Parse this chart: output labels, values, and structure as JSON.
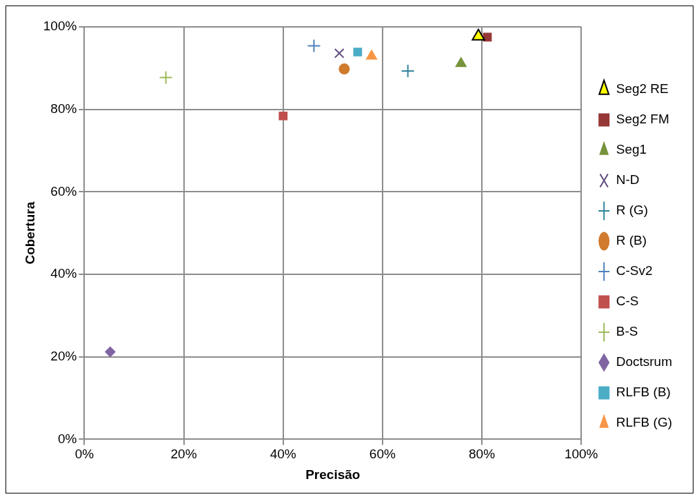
{
  "chart_data": {
    "type": "scatter",
    "xlabel": "Precisão",
    "ylabel": "Cobertura",
    "xlim": [
      0,
      100
    ],
    "ylim": [
      0,
      100
    ],
    "xticks": [
      {
        "value": 0,
        "label": "0%"
      },
      {
        "value": 20,
        "label": "20%"
      },
      {
        "value": 40,
        "label": "40%"
      },
      {
        "value": 60,
        "label": "60%"
      },
      {
        "value": 80,
        "label": "80%"
      },
      {
        "value": 100,
        "label": "100%"
      }
    ],
    "yticks": [
      {
        "value": 0,
        "label": "0%"
      },
      {
        "value": 20,
        "label": "20%"
      },
      {
        "value": 40,
        "label": "40%"
      },
      {
        "value": 60,
        "label": "60%"
      },
      {
        "value": 80,
        "label": "80%"
      },
      {
        "value": 100,
        "label": "100%"
      }
    ],
    "grid": true,
    "legend": "right",
    "series": [
      {
        "name": "Seg2 RE",
        "color": "#ffff00",
        "marker": "triangle",
        "x": [
          79.3
        ],
        "values": [
          97.7
        ]
      },
      {
        "name": "Seg2 FM",
        "color": "#953735",
        "marker": "square",
        "x": [
          81.1
        ],
        "values": [
          97.5
        ]
      },
      {
        "name": "Seg1",
        "color": "#77933c",
        "marker": "triangle",
        "x": [
          75.8
        ],
        "values": [
          91.1
        ]
      },
      {
        "name": "N-D",
        "color": "#604a7b",
        "marker": "x",
        "x": [
          51.3
        ],
        "values": [
          93.6
        ]
      },
      {
        "name": "R (G)",
        "color": "#31859c",
        "marker": "cross",
        "x": [
          65.1
        ],
        "values": [
          89.3
        ]
      },
      {
        "name": "R (B)",
        "color": "#d07a2e",
        "marker": "circle",
        "x": [
          52.3
        ],
        "values": [
          89.8
        ]
      },
      {
        "name": "C-Sv2",
        "color": "#4f81bd",
        "marker": "cross",
        "x": [
          46.2
        ],
        "values": [
          95.4
        ]
      },
      {
        "name": "C-S",
        "color": "#c0504d",
        "marker": "square",
        "x": [
          40.0
        ],
        "values": [
          78.4
        ]
      },
      {
        "name": "B-S",
        "color": "#9bbb59",
        "marker": "cross",
        "x": [
          16.4
        ],
        "values": [
          87.7
        ]
      },
      {
        "name": "Doctsrum",
        "color": "#8064a2",
        "marker": "diamond",
        "x": [
          5.2
        ],
        "values": [
          21.2
        ]
      },
      {
        "name": "RLFB (B)",
        "color": "#4bacc6",
        "marker": "square",
        "x": [
          55.0
        ],
        "values": [
          93.9
        ]
      },
      {
        "name": "RLFB (G)",
        "color": "#f79646",
        "marker": "triangle",
        "x": [
          57.8
        ],
        "values": [
          92.9
        ]
      }
    ]
  }
}
